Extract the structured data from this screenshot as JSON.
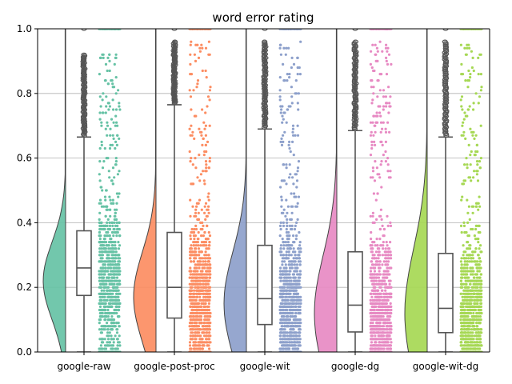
{
  "chart_data": {
    "type": "raincloud",
    "title": "word error rating",
    "xlabel": "",
    "ylabel": "",
    "ylim": [
      0,
      1.0
    ],
    "y_ticks": [
      "0.0",
      "0.2",
      "0.4",
      "0.6",
      "0.8",
      "1.0"
    ],
    "grid": "horizontal",
    "categories": [
      "google-raw",
      "google-post-proc",
      "google-wit",
      "google-dg",
      "google-wit-dg"
    ],
    "series": [
      {
        "color": "#66c2a5",
        "half_violin_color": "#66c2a5",
        "box": {
          "whisker_low": 0.0,
          "q1": 0.175,
          "median": 0.26,
          "q3": 0.375,
          "whisker_high": 0.665
        },
        "outlier_max": 0.92,
        "strip_max": 0.92,
        "density_peak_y": 0.22
      },
      {
        "color": "#fc8d62",
        "box": {
          "whisker_low": 0.0,
          "q1": 0.105,
          "median": 0.2,
          "q3": 0.37,
          "whisker_high": 0.765
        },
        "outlier_max": 0.96,
        "strip_max": 0.96,
        "density_peak_y": 0.17
      },
      {
        "color": "#8da0cb",
        "box": {
          "whisker_low": 0.0,
          "q1": 0.085,
          "median": 0.165,
          "q3": 0.33,
          "whisker_high": 0.69
        },
        "outlier_max": 0.96,
        "strip_max": 0.96,
        "density_peak_y": 0.15
      },
      {
        "color": "#e78ac3",
        "box": {
          "whisker_low": 0.0,
          "q1": 0.062,
          "median": 0.145,
          "q3": 0.31,
          "whisker_high": 0.685
        },
        "outlier_max": 0.96,
        "strip_max": 0.96,
        "density_peak_y": 0.12
      },
      {
        "color": "#a6d854",
        "box": {
          "whisker_low": 0.0,
          "q1": 0.06,
          "median": 0.135,
          "q3": 0.305,
          "whisker_high": 0.665
        },
        "outlier_max": 0.96,
        "strip_max": 0.96,
        "density_peak_y": 0.12
      }
    ]
  }
}
